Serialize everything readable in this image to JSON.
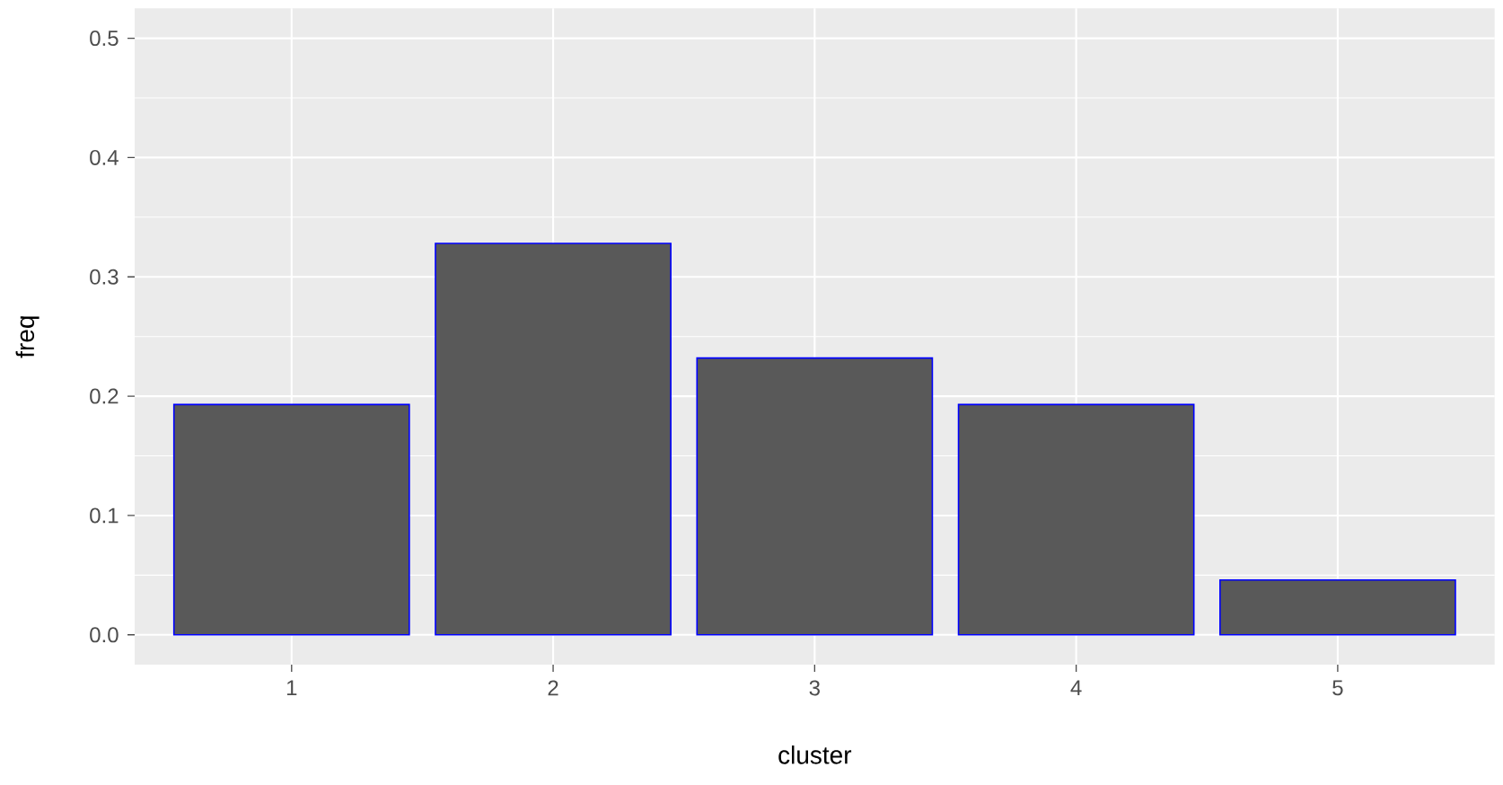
{
  "chart_data": {
    "type": "bar",
    "xlabel": "cluster",
    "ylabel": "freq",
    "categories": [
      "1",
      "2",
      "3",
      "4",
      "5"
    ],
    "values": [
      0.193,
      0.328,
      0.232,
      0.193,
      0.046
    ],
    "color": "#595959",
    "ylim": [
      -0.025,
      0.525
    ],
    "yticks": [
      {
        "value": 0,
        "label": "0.0"
      },
      0.1,
      0.2,
      0.3,
      0.4,
      0.5
    ],
    "grid": true
  }
}
